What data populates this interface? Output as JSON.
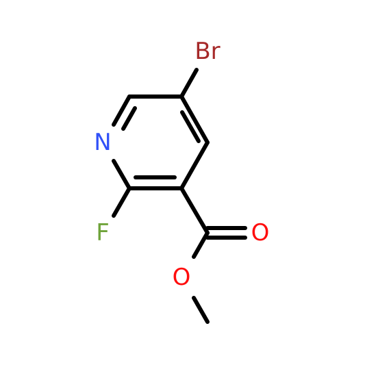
{
  "atoms": [
    "Br",
    "N",
    "F",
    "O",
    "O"
  ]
}
